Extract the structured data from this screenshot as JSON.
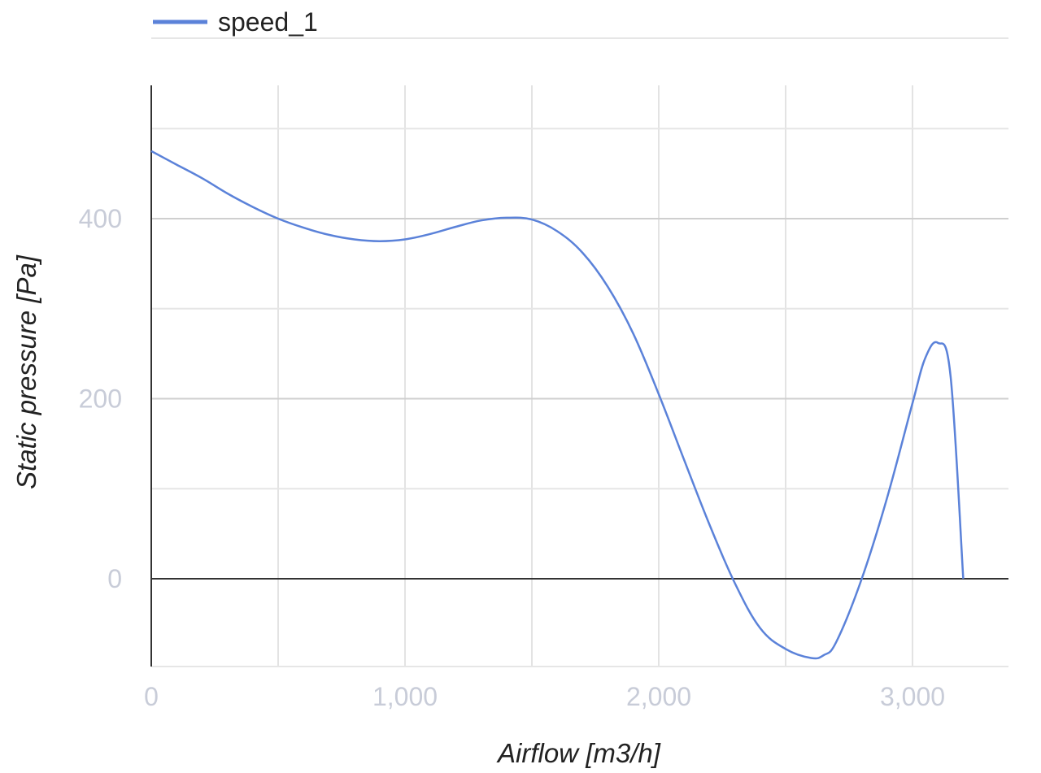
{
  "chart_data": {
    "type": "line",
    "xlabel": "Airflow [m3/h]",
    "ylabel": "Static pressure [Pa]",
    "xlim": [
      0,
      3400
    ],
    "ylim": [
      -90,
      550
    ],
    "x_ticks": [
      0,
      1000,
      2000,
      3000
    ],
    "x_tick_labels": [
      "0",
      "1,000",
      "2,000",
      "3,000"
    ],
    "y_ticks": [
      0,
      200,
      400
    ],
    "y_tick_labels": [
      "0",
      "200",
      "400"
    ],
    "grid": true,
    "legend_position": "top-left",
    "series": [
      {
        "name": "speed_1",
        "color": "#5b82d9",
        "x": [
          0,
          100,
          200,
          300,
          400,
          500,
          600,
          700,
          800,
          900,
          1000,
          1100,
          1200,
          1300,
          1400,
          1500,
          1600,
          1700,
          1800,
          1900,
          2000,
          2100,
          2200,
          2300,
          2400,
          2500,
          2600,
          2650,
          2700,
          2800,
          2900,
          3000,
          3050,
          3100,
          3150,
          3200
        ],
        "y": [
          475,
          460,
          445,
          428,
          413,
          400,
          390,
          382,
          377,
          375,
          377,
          383,
          391,
          398,
          401,
          399,
          386,
          362,
          324,
          272,
          205,
          132,
          60,
          -5,
          -55,
          -78,
          -88,
          -85,
          -70,
          0,
          90,
          195,
          245,
          262,
          225,
          0
        ]
      }
    ]
  }
}
